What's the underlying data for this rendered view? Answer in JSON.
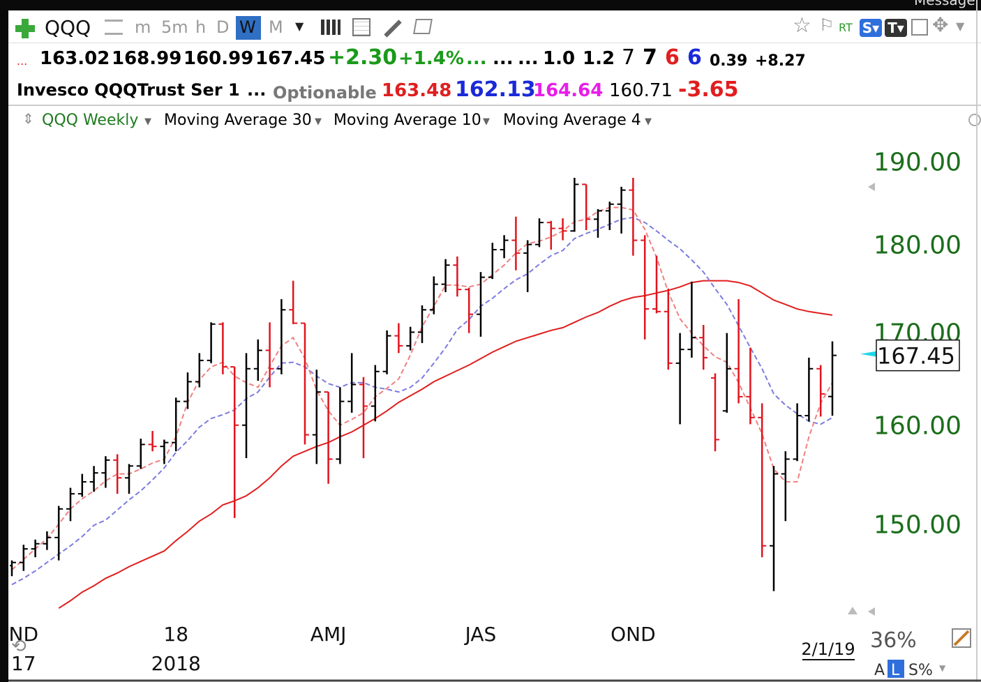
{
  "toolbar": {
    "symbol": "QQQ",
    "intervals": [
      "m",
      "5m",
      "h",
      "D",
      "W",
      "M"
    ],
    "rt": "RT",
    "s": "S",
    "t": "T",
    "message": "Message"
  },
  "quote": {
    "lead": "...",
    "ohlc": [
      "163.02",
      "168.99",
      "160.99",
      "167.45"
    ],
    "change": "+2.30",
    "change_pct": "+1.4%",
    "dots": [
      "...",
      "...",
      "..."
    ],
    "stats": [
      "1.0",
      "1.2",
      "7",
      "7",
      "6",
      "6",
      "0.39",
      "+8.27"
    ]
  },
  "info": {
    "name": "Invesco QQQTrust Ser 1",
    "dots": "...",
    "optionable": "Optionable",
    "values": [
      "163.48",
      "162.13",
      "164.64",
      "160.71",
      "-3.65"
    ]
  },
  "footer": {
    "zoom": "36%",
    "a": "A",
    "l": "L",
    "s": "S%"
  },
  "chart_data": {
    "type": "ohlc",
    "title": "QQQ Weekly",
    "log": true,
    "ylim": [
      141.5,
      193.2
    ],
    "yticks": [
      {
        "value": 150,
        "label": "150.00"
      },
      {
        "value": 160,
        "label": "160.00"
      },
      {
        "value": 170,
        "label": "170.00"
      },
      {
        "value": 180,
        "label": "180.00"
      },
      {
        "value": 190,
        "label": "190.00"
      }
    ],
    "grid": false,
    "up_color": "#000000",
    "down_color": "#e0141e",
    "date_label": "2/1/19",
    "categories": [
      null,
      "ND",
      null,
      null,
      null,
      null,
      null,
      null,
      null,
      null,
      null,
      null,
      null,
      null,
      "18",
      null,
      null,
      null,
      null,
      null,
      null,
      null,
      null,
      null,
      null,
      null,
      null,
      "AMJ",
      null,
      null,
      null,
      null,
      null,
      null,
      null,
      null,
      null,
      null,
      null,
      null,
      "JAS",
      null,
      null,
      null,
      null,
      null,
      null,
      null,
      null,
      null,
      null,
      null,
      null,
      "OND",
      null,
      null,
      null,
      null,
      null,
      null,
      null,
      null,
      null,
      null,
      null,
      null,
      null,
      null,
      null,
      null,
      null
    ],
    "year_labels": [
      null,
      "17",
      null,
      null,
      null,
      null,
      null,
      null,
      null,
      null,
      null,
      null,
      null,
      null,
      "2018",
      null,
      null,
      null,
      null,
      null,
      null,
      null,
      null,
      null,
      null,
      null,
      null,
      null,
      null,
      null,
      null,
      null,
      null,
      null,
      null,
      null,
      null,
      null,
      null,
      null,
      null,
      null,
      null,
      null,
      null,
      null,
      null,
      null,
      null,
      null,
      null,
      null,
      null,
      null,
      null,
      null,
      null,
      null,
      null,
      null,
      null,
      null,
      null,
      null,
      null,
      null,
      null,
      null,
      null,
      null,
      null
    ],
    "open": [
      146.0,
      146.3,
      147.6,
      148.1,
      148.7,
      151.5,
      153.0,
      154.2,
      155.1,
      156.4,
      154.6,
      155.8,
      158.0,
      157.8,
      158.2,
      162.5,
      164.6,
      166.9,
      170.9,
      166.2,
      160.0,
      166.0,
      168.0,
      166.0,
      172.5,
      171.0,
      159.0,
      163.5,
      156.5,
      162.5,
      164.3,
      162.0,
      165.7,
      169.6,
      168.5,
      170.0,
      172.5,
      175.4,
      177.6,
      174.8,
      172.0,
      176.2,
      179.4,
      180.5,
      179.0,
      180.0,
      182.6,
      181.9,
      181.6,
      187.2,
      183.0,
      184.0,
      184.8,
      186.5,
      180.5,
      172.6,
      172.3,
      166.6,
      168.1,
      169.4,
      165.0,
      161.5,
      166.0,
      163.0,
      160.8,
      147.9,
      155.0,
      156.5,
      161.0,
      166.0,
      163.02
    ],
    "high": [
      146.5,
      148.0,
      148.5,
      149.3,
      151.8,
      153.6,
      155.0,
      155.8,
      156.8,
      157.0,
      156.0,
      158.6,
      159.4,
      158.5,
      162.9,
      165.6,
      167.7,
      171.1,
      171.1,
      166.2,
      167.7,
      169.2,
      171.1,
      173.7,
      175.8,
      171.0,
      165.9,
      163.5,
      164.0,
      167.7,
      165.1,
      166.4,
      170.2,
      171.0,
      170.6,
      173.0,
      176.3,
      178.3,
      178.6,
      175.0,
      176.8,
      180.2,
      181.1,
      183.3,
      180.5,
      183.1,
      182.8,
      183.1,
      188.0,
      187.2,
      184.2,
      185.1,
      186.9,
      188.0,
      181.1,
      178.7,
      174.9,
      169.9,
      175.7,
      170.8,
      165.5,
      169.9,
      173.7,
      168.3,
      162.3,
      155.8,
      157.3,
      162.3,
      167.2,
      166.4,
      168.99
    ],
    "low": [
      145.0,
      145.5,
      146.8,
      147.5,
      146.5,
      150.3,
      152.7,
      153.2,
      153.6,
      153.0,
      153.0,
      155.5,
      157.3,
      156.0,
      157.3,
      161.7,
      164.0,
      166.6,
      165.4,
      150.6,
      156.6,
      164.7,
      164.0,
      165.4,
      170.9,
      158.0,
      156.0,
      154.0,
      156.0,
      161.3,
      156.6,
      160.4,
      165.4,
      167.7,
      168.0,
      168.8,
      172.0,
      174.5,
      174.0,
      169.9,
      169.5,
      176.0,
      178.4,
      177.0,
      174.5,
      179.7,
      179.4,
      180.5,
      181.5,
      181.7,
      180.8,
      181.7,
      181.3,
      178.7,
      169.2,
      172.1,
      165.9,
      160.1,
      167.2,
      165.9,
      157.3,
      161.3,
      162.3,
      160.1,
      146.8,
      143.6,
      150.3,
      156.3,
      160.4,
      160.9,
      160.99
    ],
    "close": [
      146.3,
      147.6,
      148.1,
      148.7,
      151.5,
      153.0,
      154.2,
      155.1,
      156.4,
      154.6,
      155.8,
      158.0,
      157.8,
      158.2,
      162.5,
      164.6,
      166.9,
      170.9,
      166.2,
      160.0,
      166.0,
      168.0,
      166.0,
      172.5,
      171.0,
      159.0,
      163.5,
      156.5,
      162.5,
      164.3,
      162.0,
      165.7,
      169.6,
      168.5,
      170.0,
      172.5,
      175.4,
      177.6,
      174.8,
      172.0,
      176.2,
      179.4,
      180.5,
      179.0,
      180.0,
      182.6,
      181.9,
      181.6,
      187.2,
      183.0,
      184.0,
      184.8,
      186.5,
      180.5,
      172.6,
      172.3,
      166.6,
      168.1,
      169.4,
      167.2,
      158.5,
      166.0,
      163.0,
      160.8,
      147.9,
      155.0,
      156.5,
      161.0,
      166.0,
      163.3,
      167.45
    ],
    "series": [
      {
        "name": "Moving Average 30",
        "color": "#e01e1e",
        "dashed": false,
        "values": [
          null,
          null,
          null,
          null,
          142.0,
          142.7,
          143.5,
          144.1,
          144.8,
          145.3,
          145.9,
          146.4,
          146.9,
          147.4,
          148.4,
          149.3,
          150.3,
          151.0,
          151.9,
          152.3,
          152.8,
          153.6,
          154.6,
          155.8,
          156.8,
          157.3,
          157.8,
          158.2,
          158.8,
          159.3,
          160.0,
          160.7,
          161.5,
          162.4,
          163.1,
          163.8,
          164.6,
          165.2,
          165.8,
          166.4,
          167.1,
          167.8,
          168.4,
          169.0,
          169.4,
          169.8,
          170.2,
          170.5,
          171.1,
          171.7,
          172.2,
          172.9,
          173.5,
          173.9,
          174.1,
          174.4,
          174.7,
          175.1,
          175.6,
          175.8,
          175.8,
          175.8,
          175.6,
          175.2,
          174.4,
          173.6,
          173.1,
          172.6,
          172.3,
          172.1,
          171.9
        ]
      },
      {
        "name": "Moving Average 10",
        "color": "#7b7be0",
        "dashed": true,
        "values": [
          144.2,
          144.8,
          145.5,
          146.3,
          147.1,
          147.9,
          148.8,
          149.9,
          150.4,
          151.4,
          152.4,
          153.3,
          154.4,
          155.6,
          157.2,
          158.4,
          159.8,
          160.7,
          161.1,
          161.6,
          162.8,
          163.5,
          165.1,
          166.6,
          166.7,
          166.2,
          165.2,
          164.4,
          164.0,
          164.5,
          164.5,
          164.0,
          163.8,
          163.5,
          164.0,
          165.0,
          166.6,
          168.3,
          170.3,
          171.4,
          172.9,
          173.8,
          174.9,
          175.9,
          176.6,
          177.7,
          178.7,
          179.3,
          180.7,
          181.3,
          181.8,
          182.4,
          183.0,
          183.2,
          182.6,
          181.6,
          180.5,
          179.5,
          178.2,
          176.8,
          174.9,
          173.1,
          170.7,
          168.3,
          166.0,
          163.3,
          162.1,
          161.2,
          160.4,
          160.1,
          160.8
        ]
      },
      {
        "name": "Moving Average 4",
        "color": "#f08080",
        "dashed": true,
        "values": [
          145.6,
          146.6,
          147.6,
          148.6,
          150.0,
          151.5,
          152.5,
          153.3,
          154.3,
          155.0,
          155.0,
          155.5,
          156.1,
          156.5,
          158.8,
          162.4,
          164.8,
          166.2,
          166.7,
          165.2,
          164.5,
          164.0,
          166.3,
          168.5,
          169.4,
          167.1,
          163.7,
          161.5,
          160.0,
          160.6,
          161.3,
          163.0,
          163.9,
          164.9,
          167.5,
          170.6,
          172.9,
          175.3,
          175.3,
          175.1,
          175.4,
          176.5,
          177.6,
          179.0,
          180.1,
          180.4,
          180.9,
          181.6,
          182.7,
          183.0,
          183.9,
          184.4,
          184.4,
          184.1,
          181.8,
          178.5,
          174.5,
          171.5,
          169.9,
          168.5,
          167.3,
          166.7,
          164.5,
          161.8,
          159.1,
          155.5,
          154.2,
          154.2,
          158.8,
          162.3,
          164.5
        ]
      }
    ]
  }
}
